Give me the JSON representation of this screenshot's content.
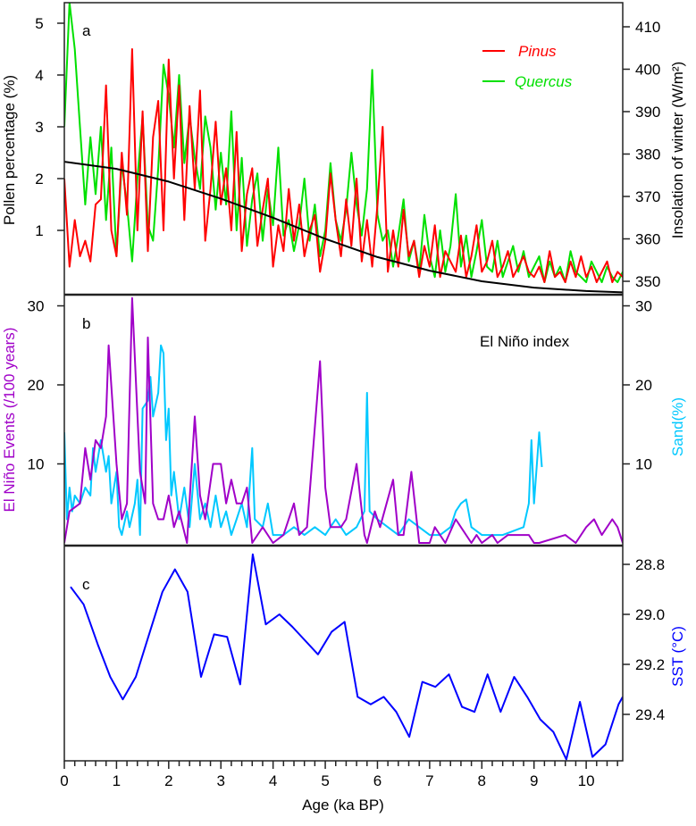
{
  "chart_data": [
    {
      "panel": "a",
      "type": "line",
      "ylabel": "Pollen percentage (%)",
      "y2label": "Insolation of winter (W/m²)",
      "ylim": [
        -0.24,
        5.4
      ],
      "y2lim": [
        347,
        415.7
      ],
      "yticks": [
        "1",
        "2",
        "3",
        "4",
        "5"
      ],
      "y2ticks": [
        "350",
        "360",
        "370",
        "380",
        "390",
        "400",
        "410"
      ],
      "legend": {
        "position": "top-right",
        "entries": [
          "Pinus",
          "Quercus"
        ]
      },
      "series": [
        {
          "name": "Pinus",
          "color": "#ff0000",
          "x_start": 0,
          "x_step": 0.1,
          "values": [
            2.0,
            0.3,
            1.2,
            0.5,
            0.8,
            0.4,
            1.5,
            1.6,
            3.8,
            1.0,
            0.5,
            2.5,
            1.3,
            4.5,
            1.0,
            3.3,
            0.6,
            2.8,
            3.5,
            1.0,
            4.3,
            2.0,
            3.8,
            1.2,
            3.4,
            1.8,
            3.7,
            0.8,
            1.8,
            3.1,
            1.5,
            2.2,
            1.0,
            2.9,
            0.6,
            1.7,
            2.2,
            0.7,
            1.4,
            2.0,
            0.3,
            1.1,
            0.6,
            1.8,
            0.8,
            1.5,
            0.5,
            1.0,
            1.3,
            0.2,
            0.8,
            2.1,
            1.2,
            0.5,
            1.6,
            0.7,
            2.0,
            0.4,
            1.2,
            0.3,
            1.5,
            3.0,
            0.2,
            1.0,
            0.3,
            1.4,
            0.5,
            0.8,
            0.1,
            0.7,
            0.3,
            1.1,
            0.1,
            0.6,
            0.4,
            0.2,
            0.9,
            0.1,
            0.5,
            1.1,
            0.2,
            0.4,
            0.8,
            0.1,
            0.3,
            0.6,
            0.1,
            0.3,
            0.5,
            0.2,
            0.1,
            0.3,
            0.0,
            0.6,
            0.1,
            0.2,
            0.0,
            0.4,
            0.1,
            0.5,
            0.1,
            0.3,
            0.0,
            0.2,
            0.4,
            0.0,
            0.2,
            0.1
          ]
        },
        {
          "name": "Quercus",
          "color": "#00e000",
          "x_start": 0,
          "x_step": 0.1,
          "values": [
            3.0,
            5.4,
            4.5,
            3.0,
            1.5,
            2.8,
            1.7,
            3.0,
            1.2,
            2.6,
            0.5,
            2.3,
            1.5,
            0.4,
            2.0,
            3.2,
            1.1,
            0.8,
            2.2,
            4.2,
            3.6,
            2.6,
            4.0,
            2.3,
            3.2,
            2.4,
            1.8,
            3.2,
            2.6,
            1.4,
            2.5,
            1.5,
            3.3,
            1.0,
            2.4,
            0.7,
            1.6,
            2.1,
            0.8,
            1.8,
            1.1,
            2.6,
            0.9,
            1.2,
            0.6,
            1.1,
            2.0,
            0.8,
            1.5,
            0.5,
            1.0,
            2.3,
            1.2,
            0.8,
            1.4,
            2.5,
            1.5,
            0.9,
            1.8,
            4.1,
            1.3,
            0.8,
            1.0,
            0.3,
            0.9,
            1.6,
            0.4,
            0.8,
            0.2,
            1.3,
            0.5,
            0.1,
            1.0,
            0.2,
            0.7,
            1.7,
            0.3,
            0.9,
            0.1,
            0.6,
            1.2,
            0.3,
            0.2,
            0.8,
            0.1,
            0.4,
            0.7,
            0.2,
            0.6,
            0.1,
            0.3,
            0.5,
            0.0,
            0.4,
            0.1,
            0.3,
            0.0,
            0.6,
            0.2,
            0.1,
            0.0,
            0.4,
            0.2,
            0.0,
            0.3,
            0.1,
            0.0,
            0.2
          ]
        },
        {
          "name": "Insolation of winter",
          "color": "#000000",
          "axis": "right",
          "x": [
            0,
            1,
            2,
            3,
            4,
            5,
            6,
            7,
            8,
            9,
            10,
            10.7
          ],
          "values": [
            378.2,
            376.5,
            373.5,
            369.5,
            365,
            360,
            355.7,
            352.5,
            350,
            348.5,
            347.7,
            347.4
          ]
        }
      ]
    },
    {
      "panel": "b",
      "type": "line",
      "annotation": "El Niño index",
      "ylabel": "El Niño Events (/100 years)",
      "y2label": "Sand(%)",
      "ylim": [
        0,
        31.5
      ],
      "yticks": [
        "10",
        "20",
        "30"
      ],
      "y2ticks": [
        "10",
        "20",
        "30"
      ],
      "series": [
        {
          "name": "El Niño Events",
          "color": "#a000c8",
          "x": [
            0,
            0.1,
            0.3,
            0.4,
            0.5,
            0.6,
            0.7,
            0.8,
            0.85,
            1.0,
            1.1,
            1.2,
            1.3,
            1.45,
            1.55,
            1.6,
            1.7,
            1.8,
            1.9,
            2.0,
            2.1,
            2.2,
            2.35,
            2.5,
            2.6,
            2.7,
            2.85,
            3.0,
            3.1,
            3.2,
            3.3,
            3.4,
            3.5,
            3.6,
            3.8,
            4.0,
            4.2,
            4.4,
            4.5,
            4.65,
            4.9,
            5.0,
            5.1,
            5.3,
            5.4,
            5.6,
            5.75,
            5.8,
            5.95,
            6.05,
            6.3,
            6.4,
            6.5,
            6.65,
            6.8,
            7.0,
            7.1,
            7.3,
            7.5,
            7.6,
            7.8,
            7.9,
            8.0,
            8.2,
            8.3,
            8.5,
            8.7,
            8.9,
            9.0,
            9.1,
            9.6,
            9.8,
            10.0,
            10.15,
            10.3,
            10.5,
            10.6,
            10.7
          ],
          "values": [
            0,
            4,
            5,
            12,
            8,
            13,
            12,
            16,
            25,
            10,
            3,
            5,
            31,
            9,
            5,
            26,
            5,
            3,
            3,
            6,
            2,
            4,
            0,
            16,
            6,
            3,
            10,
            10,
            5,
            8,
            5,
            5,
            7,
            0,
            2,
            0,
            1,
            5,
            1,
            2,
            23,
            7,
            2,
            2,
            3,
            10,
            1,
            0,
            4,
            2,
            8,
            1,
            1,
            9,
            0,
            0,
            2,
            0,
            3,
            2,
            0,
            1,
            0,
            1,
            0,
            1,
            1,
            1,
            0,
            0,
            1,
            0,
            2,
            3,
            1,
            3,
            2,
            0
          ]
        },
        {
          "name": "Sand",
          "color": "#00c8ff",
          "x": [
            0,
            0.05,
            0.1,
            0.15,
            0.2,
            0.3,
            0.4,
            0.5,
            0.55,
            0.6,
            0.7,
            0.8,
            0.85,
            0.9,
            1.0,
            1.05,
            1.1,
            1.2,
            1.25,
            1.35,
            1.4,
            1.45,
            1.5,
            1.6,
            1.65,
            1.7,
            1.8,
            1.85,
            1.9,
            1.95,
            2.0,
            2.05,
            2.1,
            2.2,
            2.3,
            2.4,
            2.5,
            2.6,
            2.7,
            2.8,
            2.9,
            3.0,
            3.1,
            3.2,
            3.3,
            3.4,
            3.5,
            3.6,
            3.65,
            3.8,
            3.9,
            4.0,
            4.2,
            4.4,
            4.6,
            4.8,
            5.0,
            5.2,
            5.4,
            5.6,
            5.75,
            5.8,
            5.85,
            6.0,
            6.2,
            6.4,
            6.6,
            6.8,
            7.0,
            7.2,
            7.4,
            7.5,
            7.6,
            7.7,
            7.8,
            8.0,
            8.4,
            8.8,
            8.9,
            8.95,
            9.0,
            9.1,
            9.15
          ],
          "values": [
            14,
            3,
            7,
            4,
            6,
            5,
            7,
            6,
            12,
            9,
            13,
            9,
            11,
            5,
            9,
            2,
            1,
            4,
            2,
            5,
            8,
            1,
            17,
            18,
            21,
            16,
            19,
            25,
            24,
            13,
            17,
            6,
            9,
            3,
            7,
            2,
            10,
            3,
            5,
            2,
            6,
            2,
            4,
            1,
            3,
            5,
            2,
            12,
            3,
            2,
            5,
            1,
            1,
            2,
            1,
            2,
            1,
            3,
            1,
            2,
            4,
            19,
            4,
            3,
            2,
            1,
            3,
            2,
            1,
            1,
            2,
            4,
            5,
            5.5,
            2,
            1,
            1,
            2,
            5,
            13,
            5,
            14,
            9.6
          ]
        }
      ]
    },
    {
      "panel": "c",
      "type": "line",
      "ylabel": "SST (°C)",
      "ylim": [
        29.59,
        28.725
      ],
      "y_inverted": true,
      "yticks": [
        "28.8",
        "29.0",
        "29.2",
        "29.4"
      ],
      "series": [
        {
          "name": "SST",
          "color": "#0000ff",
          "x": [
            0.12,
            0.37,
            0.64,
            0.88,
            1.12,
            1.37,
            1.61,
            1.88,
            2.12,
            2.36,
            2.62,
            2.87,
            3.12,
            3.37,
            3.61,
            3.86,
            4.12,
            4.37,
            4.86,
            5.12,
            5.37,
            5.62,
            5.87,
            6.12,
            6.36,
            6.61,
            6.86,
            7.11,
            7.37,
            7.62,
            7.86,
            8.11,
            8.36,
            8.62,
            8.87,
            9.12,
            9.37,
            9.62,
            9.88,
            10.12,
            10.37,
            10.62,
            10.7
          ],
          "values": [
            28.89,
            28.96,
            29.12,
            29.25,
            29.34,
            29.25,
            29.09,
            28.91,
            28.82,
            28.91,
            29.25,
            29.08,
            29.09,
            29.28,
            28.76,
            29.04,
            29.0,
            29.05,
            29.16,
            29.07,
            29.03,
            29.33,
            29.36,
            29.33,
            29.39,
            29.49,
            29.27,
            29.29,
            29.24,
            29.37,
            29.39,
            29.24,
            29.39,
            29.25,
            29.33,
            29.42,
            29.47,
            29.58,
            29.35,
            29.57,
            29.52,
            29.36,
            29.33
          ]
        }
      ]
    }
  ],
  "xaxis": {
    "label": "Age (ka BP)",
    "xlim": [
      0,
      10.7
    ],
    "ticks": [
      "0",
      "1",
      "2",
      "3",
      "4",
      "5",
      "6",
      "7",
      "8",
      "9",
      "10"
    ]
  },
  "panel_labels": [
    "a",
    "b",
    "c"
  ]
}
